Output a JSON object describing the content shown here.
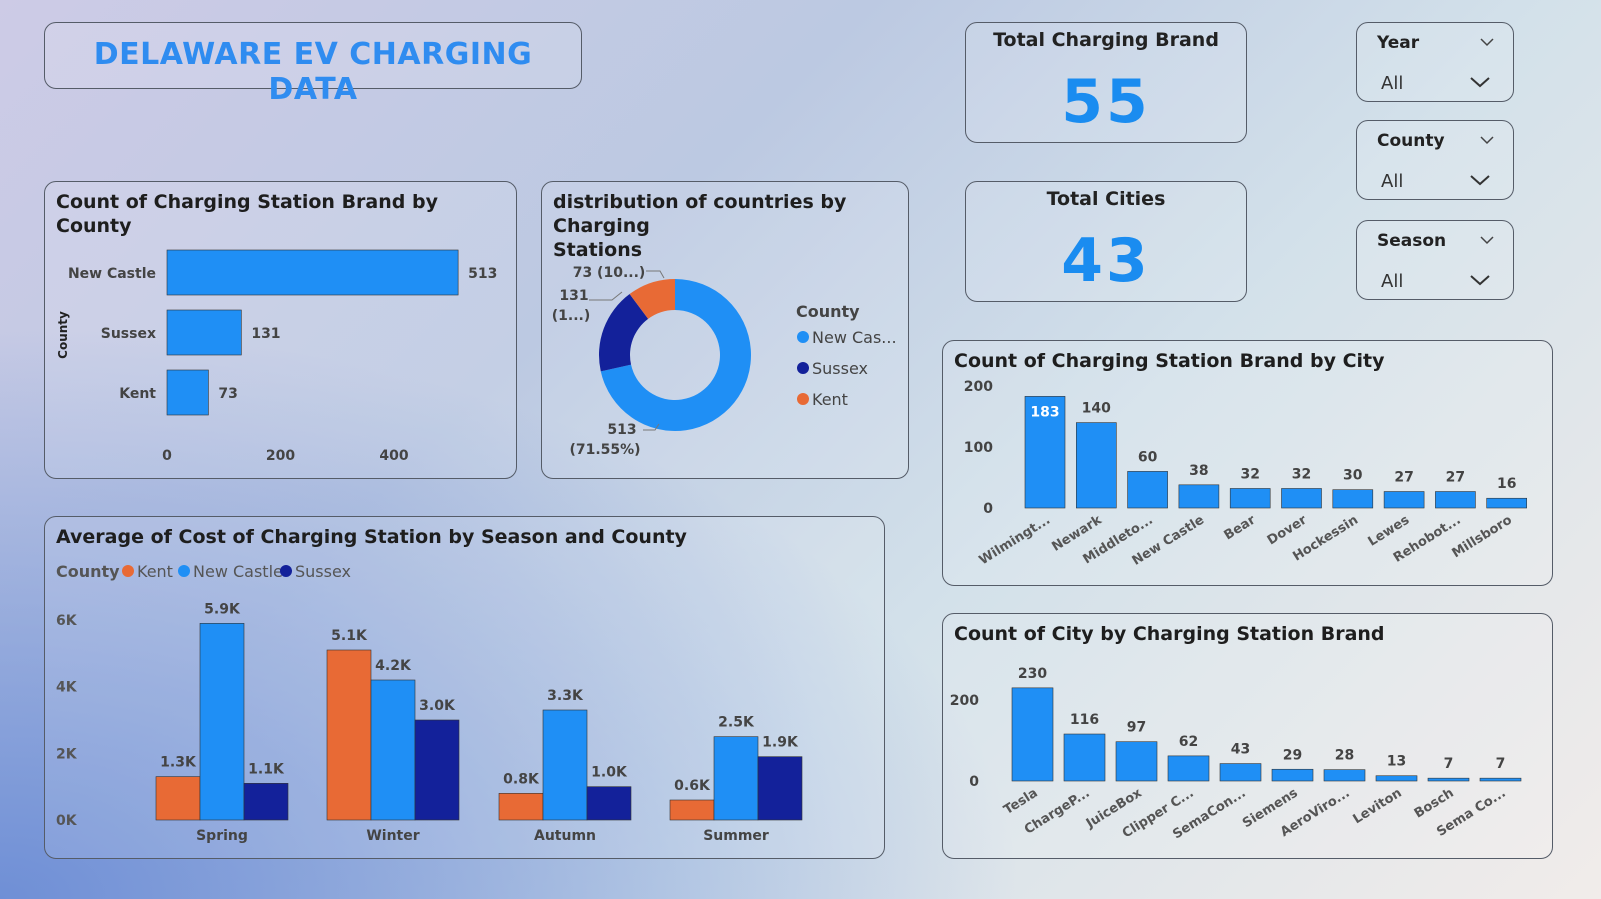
{
  "header": {
    "title": "DELAWARE EV CHARGING DATA"
  },
  "kpis": [
    {
      "label": "Total Charging Brand",
      "value": "55"
    },
    {
      "label": "Total Cities",
      "value": "43"
    }
  ],
  "slicers": [
    {
      "label": "Year",
      "value": "All",
      "icon": "chevron-down-icon"
    },
    {
      "label": "County",
      "value": "All",
      "icon": "chevron-down-icon"
    },
    {
      "label": "Season",
      "value": "All",
      "icon": "chevron-down-icon"
    }
  ],
  "colors": {
    "new_castle": "#1f8ff5",
    "sussex": "#13219a",
    "kent": "#e86a35",
    "title": "#2f8cf0"
  },
  "chart_data": [
    {
      "id": "county_bar",
      "type": "bar",
      "orientation": "horizontal",
      "title": "Count of Charging Station Brand by County",
      "ylabel": "County",
      "categories": [
        "New Castle",
        "Sussex",
        "Kent"
      ],
      "values": [
        513,
        131,
        73
      ],
      "data_labels": [
        "513",
        "131",
        "73"
      ],
      "xticks": [
        "0",
        "200",
        "400"
      ],
      "xlim": [
        0,
        550
      ]
    },
    {
      "id": "county_donut",
      "type": "pie",
      "title": "distribution of countries by Charging\nStations",
      "legend_title": "County",
      "legend": [
        "New Cas...",
        "Sussex",
        "Kent"
      ],
      "categories": [
        "New Castle",
        "Sussex",
        "Kent"
      ],
      "values": [
        513,
        131,
        73
      ],
      "labels": [
        [
          "513",
          "(71.55%)"
        ],
        [
          "131",
          "(1...)"
        ],
        [
          "73 (10...)"
        ]
      ]
    },
    {
      "id": "season_cost",
      "type": "bar",
      "title": "Average of Cost of Charging Station by Season and County",
      "legend_title": "County",
      "legend": [
        "Kent",
        "New Castle",
        "Sussex"
      ],
      "categories": [
        "Spring",
        "Winter",
        "Autumn",
        "Summer"
      ],
      "series": [
        {
          "name": "Kent",
          "values": [
            1300,
            5100,
            800,
            600
          ],
          "labels": [
            "1.3K",
            "5.1K",
            "0.8K",
            "0.6K"
          ]
        },
        {
          "name": "New Castle",
          "values": [
            5900,
            4200,
            3300,
            2500
          ],
          "labels": [
            "5.9K",
            "4.2K",
            "3.3K",
            "2.5K"
          ]
        },
        {
          "name": "Sussex",
          "values": [
            1100,
            3000,
            1000,
            1900
          ],
          "labels": [
            "1.1K",
            "3.0K",
            "1.0K",
            "1.9K"
          ]
        }
      ],
      "yticks": [
        "0K",
        "2K",
        "4K",
        "6K"
      ],
      "ylim": [
        0,
        6000
      ]
    },
    {
      "id": "city_bar",
      "type": "bar",
      "title": "Count of Charging Station Brand by City",
      "categories": [
        "Wilmingt...",
        "Newark",
        "Middleto...",
        "New Castle",
        "Bear",
        "Dover",
        "Hockessin",
        "Lewes",
        "Rehobot...",
        "Millsboro"
      ],
      "values": [
        183,
        140,
        60,
        38,
        32,
        32,
        30,
        27,
        27,
        16
      ],
      "data_labels": [
        "183",
        "140",
        "60",
        "38",
        "32",
        "32",
        "30",
        "27",
        "27",
        "16"
      ],
      "yticks": [
        "0",
        "100",
        "200"
      ],
      "ylim": [
        0,
        200
      ]
    },
    {
      "id": "brand_bar",
      "type": "bar",
      "title": "Count of City by Charging Station Brand",
      "categories": [
        "Tesla",
        "ChargeP...",
        "JuiceBox",
        "Clipper C...",
        "SemaCon...",
        "Siemens",
        "AeroViro...",
        "Leviton",
        "Bosch",
        "Sema Co..."
      ],
      "values": [
        230,
        116,
        97,
        62,
        43,
        29,
        28,
        13,
        7,
        7
      ],
      "data_labels": [
        "230",
        "116",
        "97",
        "62",
        "43",
        "29",
        "28",
        "13",
        "7",
        "7"
      ],
      "yticks": [
        "0",
        "200"
      ],
      "ylim": [
        0,
        250
      ]
    }
  ]
}
